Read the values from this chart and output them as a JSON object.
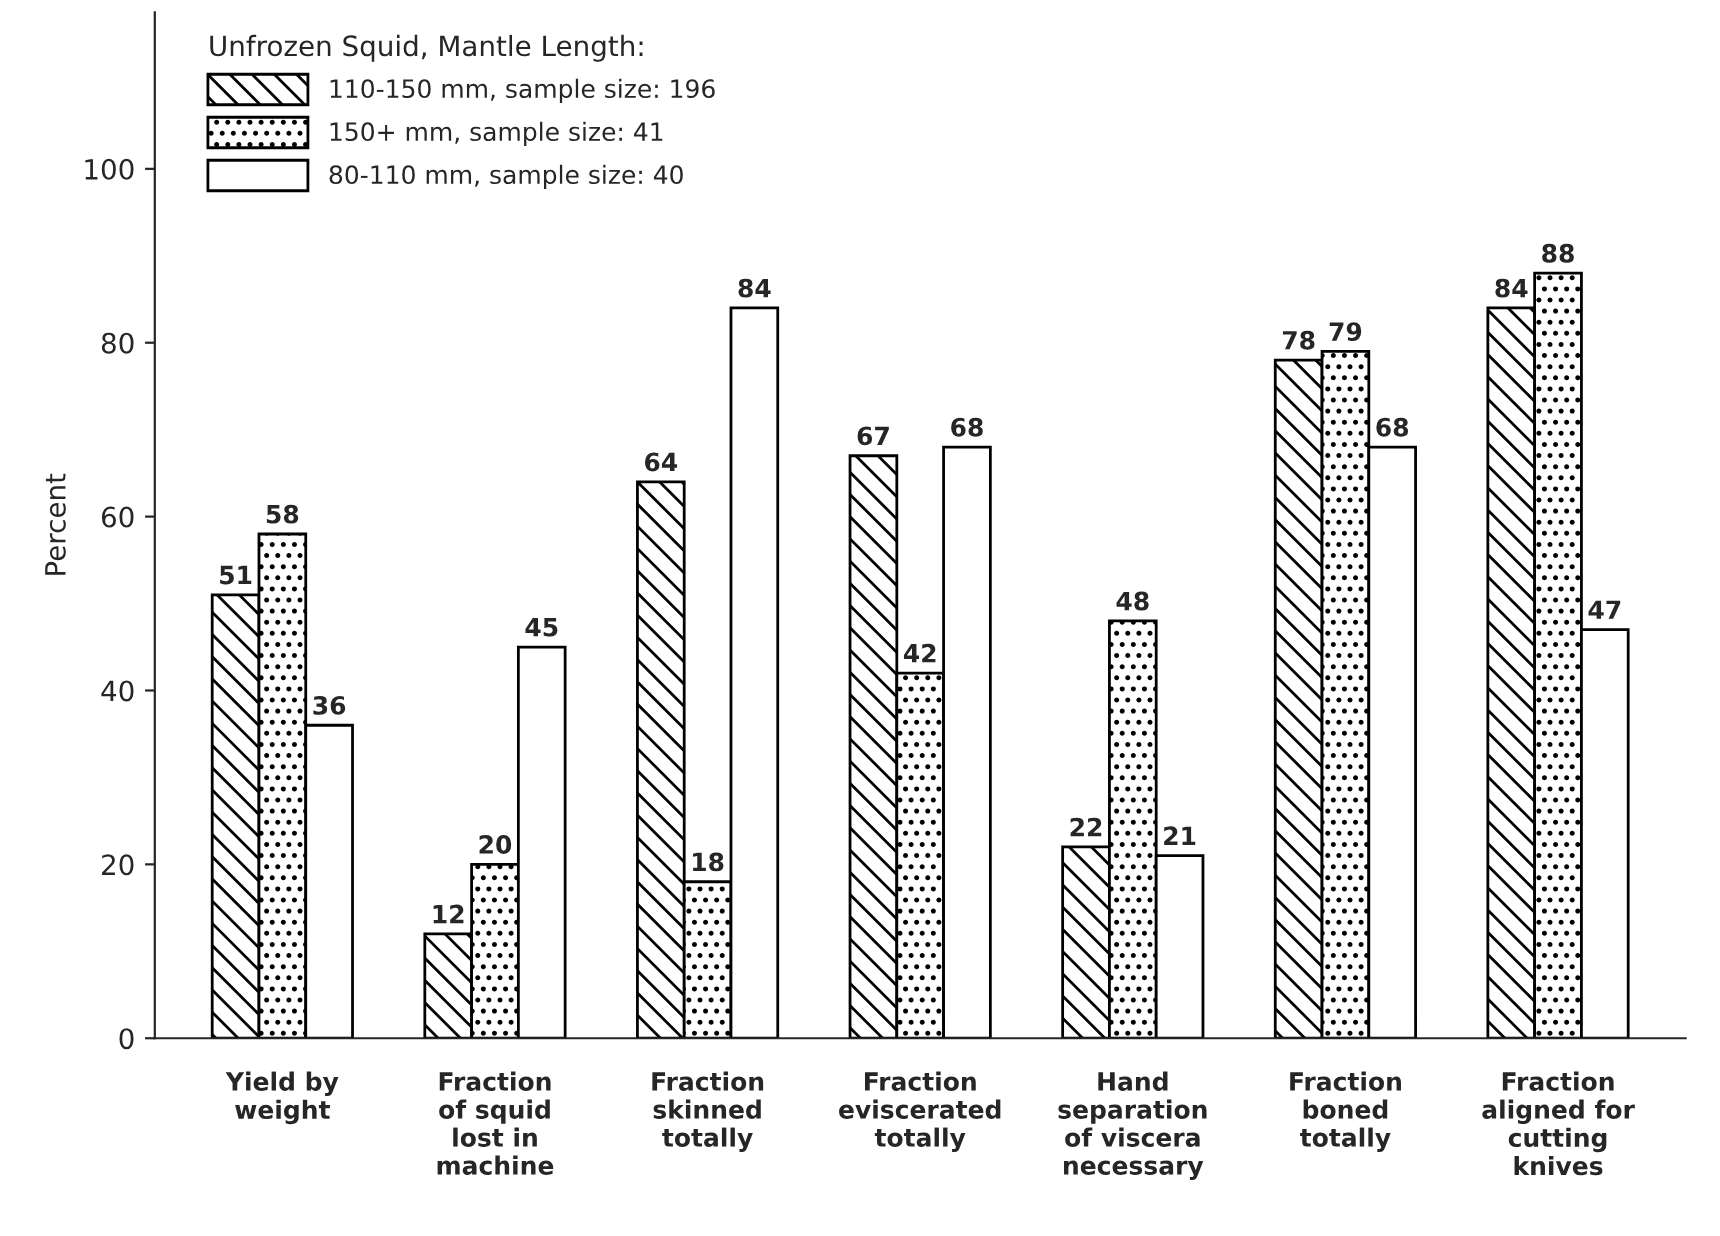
{
  "chart_data": {
    "type": "bar",
    "ylabel": "Percent",
    "legend_title": "Unfrozen Squid, Mantle Length:",
    "categories": [
      "Yield by\nweight",
      "Fraction\nof squid\nlost in\nmachine",
      "Fraction\nskinned\ntotally",
      "Fraction\neviscerated\ntotally",
      "Hand\nseparation\nof viscera\nnecessary",
      "Fraction\nboned\ntotally",
      "Fraction\naligned for\ncutting\nknives"
    ],
    "series": [
      {
        "name": "110-150 mm, sample size: 196",
        "color": "#000000",
        "values": [
          51,
          12,
          64,
          67,
          22,
          78,
          84
        ]
      },
      {
        "name": "150+ mm, sample size: 41",
        "color": "#000000",
        "values": [
          58,
          20,
          18,
          42,
          48,
          79,
          88
        ]
      },
      {
        "name": "80-110 mm, sample size: 40",
        "color": "#ffffff",
        "values": [
          36,
          45,
          84,
          68,
          21,
          68,
          47
        ]
      }
    ],
    "ylim": [
      0,
      118
    ],
    "yticks": [
      0,
      20,
      40,
      60,
      80,
      100
    ],
    "data_labels": true,
    "legend": "top left",
    "grid": false
  }
}
